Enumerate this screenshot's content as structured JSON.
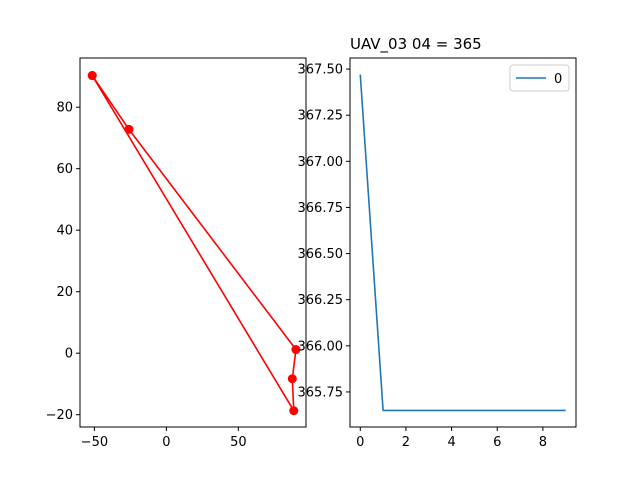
{
  "figure": {
    "background": "#ffffff"
  },
  "chart_data": [
    {
      "type": "line",
      "title": "",
      "xlabel": "",
      "ylabel": "",
      "markers": true,
      "color": "#ff0000",
      "x": [
        -51.5,
        -26.0,
        90.0,
        87.5,
        88.5,
        -51.5
      ],
      "y": [
        90.3,
        72.8,
        1.2,
        -8.3,
        -18.7,
        90.3
      ],
      "xlim": [
        -60,
        97
      ],
      "ylim": [
        -24,
        96
      ],
      "xticks": [
        -50,
        0,
        50
      ],
      "yticks": [
        -20,
        0,
        20,
        40,
        60,
        80
      ],
      "xtick_labels": [
        "−50",
        "0",
        "50"
      ],
      "ytick_labels": [
        "−20",
        "0",
        "20",
        "40",
        "60",
        "80"
      ],
      "grid": false
    },
    {
      "type": "line",
      "title": "UAV_03 04 = 365",
      "xlabel": "",
      "ylabel": "",
      "color": "#1f77b4",
      "series": [
        {
          "name": "0",
          "x": [
            0,
            1,
            2,
            3,
            4,
            5,
            6,
            7,
            8,
            9
          ],
          "values": [
            367.47,
            365.65,
            365.65,
            365.65,
            365.65,
            365.65,
            365.65,
            365.65,
            365.65,
            365.65
          ]
        }
      ],
      "xlim": [
        -0.45,
        9.45
      ],
      "ylim": [
        365.56,
        367.56
      ],
      "xticks": [
        0,
        2,
        4,
        6,
        8
      ],
      "yticks": [
        365.75,
        366.0,
        366.25,
        366.5,
        366.75,
        367.0,
        367.25,
        367.5
      ],
      "xtick_labels": [
        "0",
        "2",
        "4",
        "6",
        "8"
      ],
      "ytick_labels": [
        "365.75",
        "366.00",
        "366.25",
        "366.50",
        "366.75",
        "367.00",
        "367.25",
        "367.50"
      ],
      "legend": {
        "placement": "top-right",
        "entries": [
          "0"
        ]
      },
      "grid": false
    }
  ]
}
